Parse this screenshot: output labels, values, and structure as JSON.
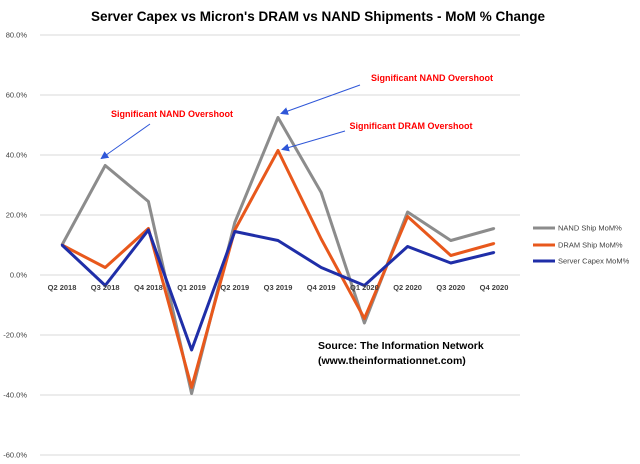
{
  "chart_data": {
    "type": "line",
    "title": "Server Capex vs Micron's DRAM vs NAND Shipments - MoM % Change",
    "xlabel": "",
    "ylabel": "",
    "categories": [
      "Q2 2018",
      "Q3 2018",
      "Q4 2018",
      "Q1 2019",
      "Q2 2019",
      "Q3 2019",
      "Q4 2019",
      "Q1 2020",
      "Q2 2020",
      "Q3 2020",
      "Q4 2020"
    ],
    "y_tick_labels": [
      "-60.0%",
      "-40.0%",
      "-20.0%",
      "0.0%",
      "20.0%",
      "40.0%",
      "60.0%",
      "80.0%"
    ],
    "ylim": [
      -60,
      80
    ],
    "grid": true,
    "legend_position": "right",
    "series": [
      {
        "name": "NAND Ship MoM%",
        "color": "#8c8c8c",
        "values": [
          10.0,
          36.5,
          24.5,
          -39.5,
          17.5,
          52.5,
          27.5,
          -16.0,
          21.0,
          11.5,
          15.5
        ]
      },
      {
        "name": "DRAM Ship MoM%",
        "color": "#e8581c",
        "values": [
          10.0,
          2.5,
          15.5,
          -37.5,
          15.0,
          41.5,
          12.0,
          -14.5,
          19.5,
          6.5,
          10.5
        ]
      },
      {
        "name": "Server Capex MoM%",
        "color": "#1f2ea8",
        "values": [
          10.0,
          -3.5,
          15.0,
          -25.0,
          14.5,
          11.5,
          2.5,
          -3.5,
          9.5,
          4.0,
          7.5
        ]
      }
    ],
    "annotations": [
      {
        "text": "Significant NAND Overshoot",
        "target_category": "Q3 2018",
        "target_series": "NAND Ship MoM%"
      },
      {
        "text": "Significant NAND Overshoot",
        "target_category": "Q3 2019",
        "target_series": "NAND Ship MoM%"
      },
      {
        "text": "Significant DRAM Overshoot",
        "target_category": "Q3 2019",
        "target_series": "DRAM Ship MoM%"
      }
    ],
    "source_lines": [
      "Source: The Information Network",
      "(www.theinformationnet.com)"
    ]
  }
}
